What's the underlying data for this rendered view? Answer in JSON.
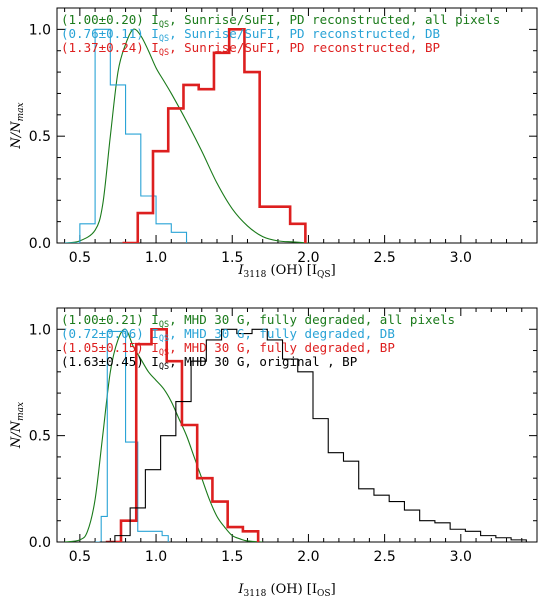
{
  "chart_data": [
    {
      "type": "line",
      "panel": "top",
      "xlabel": "I_3118 (OH) [I_QS]",
      "xlabel_main": "I",
      "xlabel_sub": "3118",
      "xlabel_rest": " (OH) [I",
      "xlabel_unit_sub": "QS",
      "xlabel_end": "]",
      "ylabel": "N/N_max",
      "ylabel_main": "N/N",
      "ylabel_sub": "max",
      "xlim": [
        0.35,
        3.5
      ],
      "ylim": [
        0,
        1.1
      ],
      "xticks": [
        "0.5",
        "1.0",
        "1.5",
        "2.0",
        "2.5",
        "3.0"
      ],
      "yticks": [
        "0.0",
        "0.5",
        "1.0"
      ],
      "legend_position": "top-left",
      "series": [
        {
          "name": "(1.00±0.20) I_QS, Sunrise/SuFI, PD reconstructed, all pixels",
          "label_pre": "(1.00±0.20) I",
          "label_sub": "QS",
          "label_post": ", Sunrise/SuFI, PD reconstructed, all pixels",
          "color": "#1a7a1a",
          "style": "smooth",
          "x": [
            0.4,
            0.5,
            0.6,
            0.65,
            0.7,
            0.75,
            0.8,
            0.85,
            0.9,
            0.95,
            1.0,
            1.05,
            1.1,
            1.2,
            1.3,
            1.4,
            1.5,
            1.6,
            1.7,
            1.8,
            1.9,
            2.0
          ],
          "y": [
            0.0,
            0.01,
            0.06,
            0.18,
            0.5,
            0.8,
            0.93,
            1.0,
            0.97,
            0.9,
            0.82,
            0.76,
            0.7,
            0.57,
            0.43,
            0.28,
            0.16,
            0.08,
            0.03,
            0.01,
            0.005,
            0.0
          ]
        },
        {
          "name": "(0.76±0.11) I_QS, Sunrise/SuFI, PD reconstructed, DB",
          "label_pre": "(0.76±0.11) I",
          "label_sub": "QS",
          "label_post": ", Sunrise/SuFI, PD reconstructed, DB",
          "color": "#29a3d6",
          "style": "step",
          "x": [
            0.4,
            0.5,
            0.6,
            0.7,
            0.8,
            0.9,
            1.0,
            1.1,
            1.2
          ],
          "y": [
            0.0,
            0.09,
            1.0,
            0.74,
            0.51,
            0.22,
            0.09,
            0.05,
            0.0
          ]
        },
        {
          "name": "(1.37±0.24) I_QS, Sunrise/SuFI, PD reconstructed, BP",
          "label_pre": "(1.37±0.24) I",
          "label_sub": "QS",
          "label_post": ", Sunrise/SuFI, PD reconstructed, BP",
          "color": "#dd1f1f",
          "style": "step",
          "x": [
            0.78,
            0.88,
            0.98,
            1.08,
            1.18,
            1.28,
            1.38,
            1.48,
            1.58,
            1.68,
            1.78,
            1.88,
            1.98
          ],
          "y": [
            0.0,
            0.14,
            0.43,
            0.63,
            0.74,
            0.72,
            0.89,
            1.0,
            0.8,
            0.17,
            0.17,
            0.09,
            0.0
          ]
        }
      ]
    },
    {
      "type": "line",
      "panel": "bottom",
      "xlabel": "I_3118 (OH) [I_QS]",
      "xlabel_main": "I",
      "xlabel_sub": "3118",
      "xlabel_rest": " (OH) [I",
      "xlabel_unit_sub": "QS",
      "xlabel_end": "]",
      "ylabel": "N/N_max",
      "ylabel_main": "N/N",
      "ylabel_sub": "max",
      "xlim": [
        0.35,
        3.5
      ],
      "ylim": [
        0,
        1.1
      ],
      "xticks": [
        "0.5",
        "1.0",
        "1.5",
        "2.0",
        "2.5",
        "3.0"
      ],
      "yticks": [
        "0.0",
        "0.5",
        "1.0"
      ],
      "legend_position": "top-left",
      "series": [
        {
          "name": "(1.00±0.21) I_QS, MHD 30 G, fully degraded, all pixels",
          "label_pre": "(1.00±0.21) I",
          "label_sub": "QS",
          "label_post": ", MHD 30 G, fully degraded, all pixels",
          "color": "#1a7a1a",
          "style": "smooth",
          "x": [
            0.4,
            0.5,
            0.55,
            0.6,
            0.65,
            0.7,
            0.75,
            0.8,
            0.85,
            0.9,
            0.95,
            1.0,
            1.05,
            1.1,
            1.15,
            1.2,
            1.25,
            1.3,
            1.35,
            1.4,
            1.45,
            1.5,
            1.55,
            1.6,
            1.7
          ],
          "y": [
            0.0,
            0.01,
            0.05,
            0.2,
            0.5,
            0.8,
            0.95,
            1.0,
            0.92,
            0.86,
            0.8,
            0.76,
            0.72,
            0.66,
            0.58,
            0.5,
            0.4,
            0.3,
            0.2,
            0.12,
            0.07,
            0.03,
            0.015,
            0.005,
            0.0
          ]
        },
        {
          "name": "(0.72±0.06) I_QS, MHD 30 G, fully degraded, DB",
          "label_pre": "(0.72±0.06) I",
          "label_sub": "QS",
          "label_post": ", MHD 30 G, fully degraded, DB",
          "color": "#29a3d6",
          "style": "step",
          "x": [
            0.6,
            0.64,
            0.68,
            0.72,
            0.76,
            0.8,
            0.84,
            0.88,
            0.92,
            0.96,
            1.0,
            1.04,
            1.08
          ],
          "y": [
            0.0,
            0.12,
            0.99,
            0.99,
            0.99,
            0.47,
            0.47,
            0.05,
            0.05,
            0.05,
            0.05,
            0.03,
            0.0
          ]
        },
        {
          "name": "(1.05±0.15) I_QS, MHD 30 G, fully degraded, BP",
          "label_pre": "(1.05±0.15) I",
          "label_sub": "QS",
          "label_post": ", MHD 30 G, fully degraded, BP",
          "color": "#dd1f1f",
          "style": "step",
          "x": [
            0.67,
            0.77,
            0.87,
            0.97,
            1.07,
            1.17,
            1.27,
            1.37,
            1.47,
            1.57,
            1.67
          ],
          "y": [
            0.0,
            0.1,
            0.93,
            1.0,
            0.85,
            0.55,
            0.3,
            0.19,
            0.07,
            0.05,
            0.0
          ]
        },
        {
          "name": "(1.63±0.45) I_QS, MHD 30 G, original , BP",
          "label_pre": "(1.63±0.45) I",
          "label_sub": "QS",
          "label_post": ", MHD 30 G, original       , BP",
          "color": "#000000",
          "style": "step",
          "x": [
            0.63,
            0.73,
            0.83,
            0.93,
            1.03,
            1.13,
            1.23,
            1.33,
            1.43,
            1.53,
            1.63,
            1.73,
            1.83,
            1.93,
            2.03,
            2.13,
            2.23,
            2.33,
            2.43,
            2.53,
            2.63,
            2.73,
            2.83,
            2.93,
            3.03,
            3.13,
            3.23,
            3.33,
            3.43
          ],
          "y": [
            0.0,
            0.03,
            0.16,
            0.34,
            0.5,
            0.66,
            0.85,
            0.95,
            1.0,
            0.98,
            1.0,
            0.95,
            0.86,
            0.8,
            0.58,
            0.42,
            0.38,
            0.25,
            0.22,
            0.19,
            0.15,
            0.1,
            0.09,
            0.06,
            0.05,
            0.03,
            0.02,
            0.01,
            0.0
          ]
        }
      ]
    }
  ]
}
